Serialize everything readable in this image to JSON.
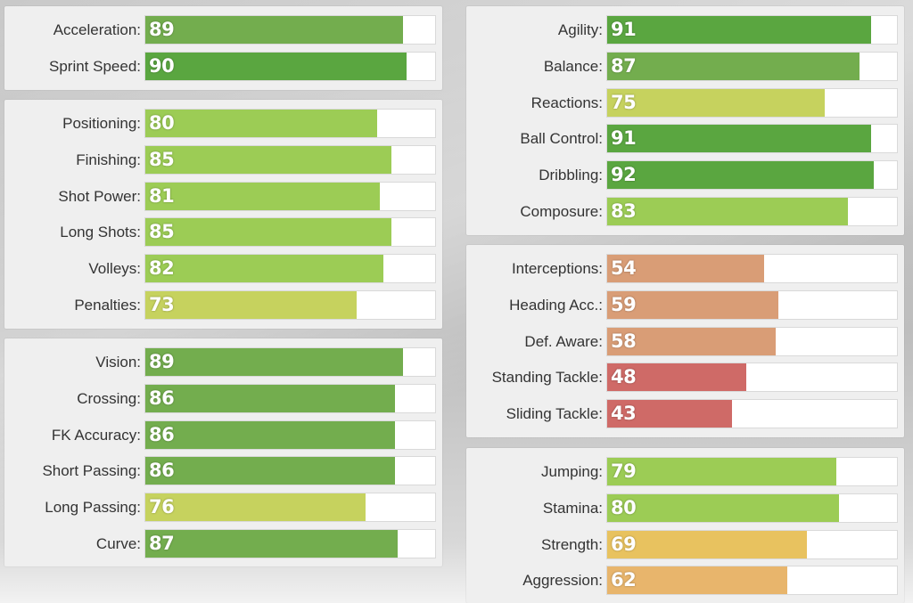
{
  "panels": [
    {
      "id": "pace",
      "stats": [
        {
          "label": "Acceleration:",
          "value": 89
        },
        {
          "label": "Sprint Speed:",
          "value": 90
        }
      ]
    },
    {
      "id": "shooting",
      "stats": [
        {
          "label": "Positioning:",
          "value": 80
        },
        {
          "label": "Finishing:",
          "value": 85
        },
        {
          "label": "Shot Power:",
          "value": 81
        },
        {
          "label": "Long Shots:",
          "value": 85
        },
        {
          "label": "Volleys:",
          "value": 82
        },
        {
          "label": "Penalties:",
          "value": 73
        }
      ]
    },
    {
      "id": "passing",
      "stats": [
        {
          "label": "Vision:",
          "value": 89
        },
        {
          "label": "Crossing:",
          "value": 86
        },
        {
          "label": "FK Accuracy:",
          "value": 86
        },
        {
          "label": "Short Passing:",
          "value": 86
        },
        {
          "label": "Long Passing:",
          "value": 76
        },
        {
          "label": "Curve:",
          "value": 87
        }
      ]
    },
    {
      "id": "dribbling",
      "stats": [
        {
          "label": "Agility:",
          "value": 91
        },
        {
          "label": "Balance:",
          "value": 87
        },
        {
          "label": "Reactions:",
          "value": 75
        },
        {
          "label": "Ball Control:",
          "value": 91
        },
        {
          "label": "Dribbling:",
          "value": 92
        },
        {
          "label": "Composure:",
          "value": 83
        }
      ]
    },
    {
      "id": "defending",
      "stats": [
        {
          "label": "Interceptions:",
          "value": 54
        },
        {
          "label": "Heading Acc.:",
          "value": 59
        },
        {
          "label": "Def. Aware:",
          "value": 58
        },
        {
          "label": "Standing Tackle:",
          "value": 48
        },
        {
          "label": "Sliding Tackle:",
          "value": 43
        }
      ]
    },
    {
      "id": "physical",
      "stats": [
        {
          "label": "Jumping:",
          "value": 79
        },
        {
          "label": "Stamina:",
          "value": 80
        },
        {
          "label": "Strength:",
          "value": 69
        },
        {
          "label": "Aggression:",
          "value": 62
        }
      ]
    }
  ],
  "colors": {
    "elite": "#5aa640",
    "great": "#73ad4e",
    "good": "#9ccc55",
    "above": "#c6d25e",
    "average": "#e8c25f",
    "fair": "#e8b56c",
    "low": "#d99d76",
    "poor": "#cf6a67"
  }
}
